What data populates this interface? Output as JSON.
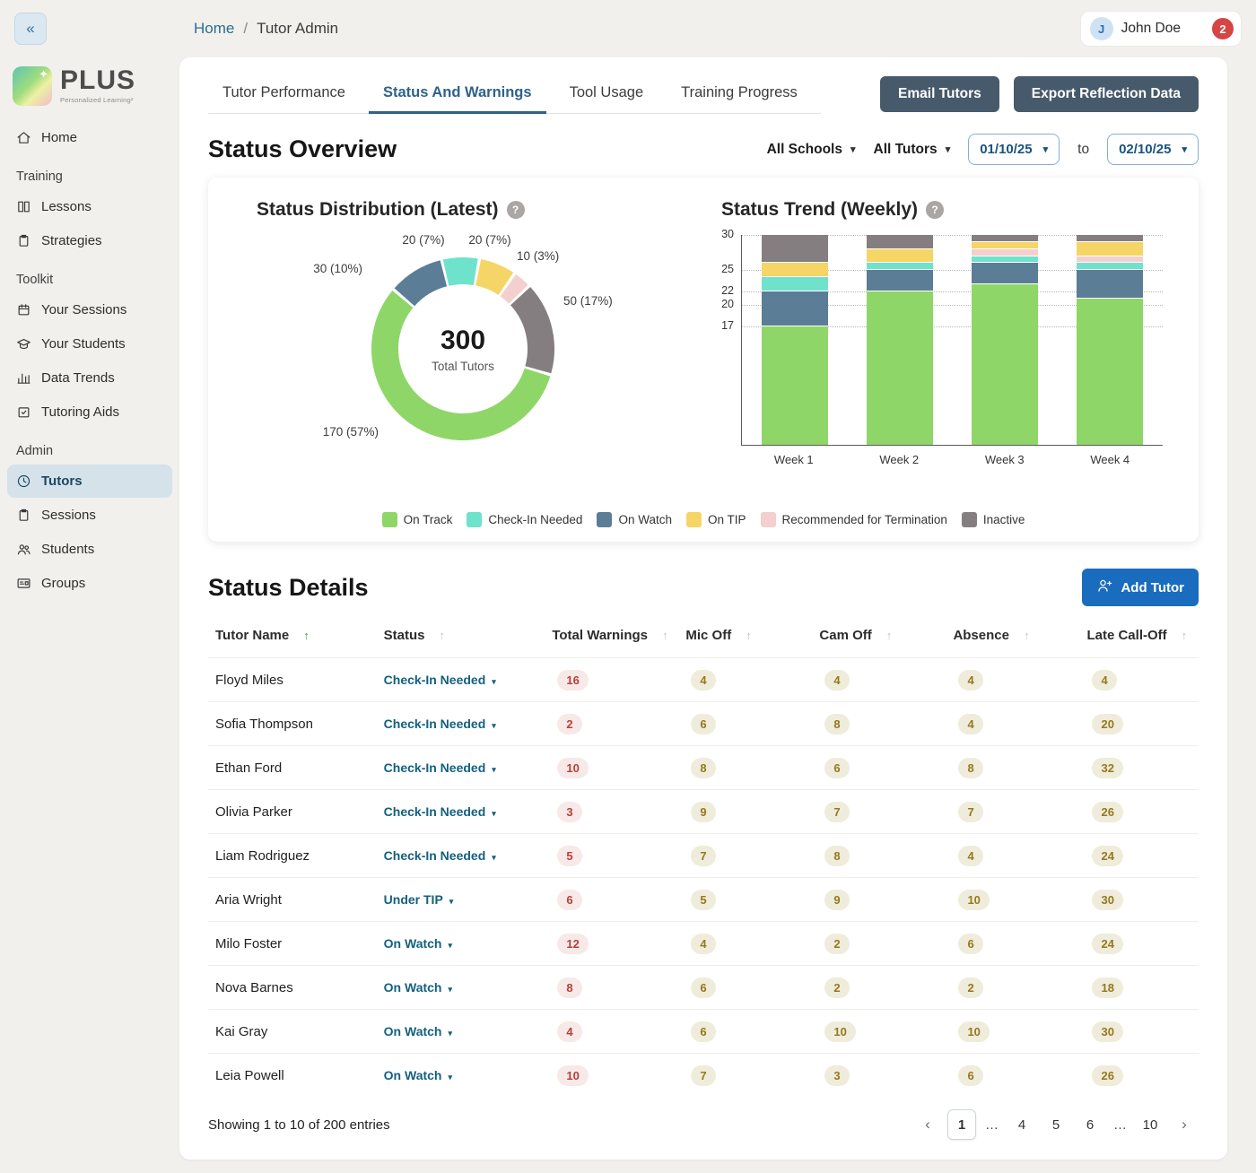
{
  "icons": {
    "collapse": "«",
    "breadcrumb_separator": "/",
    "help": "?",
    "caret_down": "▾",
    "sort_ascending": "↑",
    "pagination_prev": "‹",
    "pagination_next": "›",
    "logo_sparkle": "✦"
  },
  "topbar": {
    "breadcrumb": {
      "home": "Home",
      "current": "Tutor Admin"
    },
    "user": {
      "initial": "J",
      "name": "John Doe",
      "notification_count": "2"
    }
  },
  "sidebar": {
    "logo": {
      "name": "PLUS",
      "tagline": "Personalized Learning²"
    },
    "sections": [
      {
        "label": "",
        "items": [
          {
            "label": "Home",
            "icon": "home-icon",
            "active": false
          }
        ]
      },
      {
        "label": "Training",
        "items": [
          {
            "label": "Lessons",
            "icon": "book-icon",
            "active": false
          },
          {
            "label": "Strategies",
            "icon": "clipboard-icon",
            "active": false
          }
        ]
      },
      {
        "label": "Toolkit",
        "items": [
          {
            "label": "Your Sessions",
            "icon": "calendar-icon",
            "active": false
          },
          {
            "label": "Your Students",
            "icon": "graduation-cap-icon",
            "active": false
          },
          {
            "label": "Data Trends",
            "icon": "bar-chart-icon",
            "active": false
          },
          {
            "label": "Tutoring Aids",
            "icon": "calendar-check-icon",
            "active": false
          }
        ]
      },
      {
        "label": "Admin",
        "items": [
          {
            "label": "Tutors",
            "icon": "clock-icon",
            "active": true
          },
          {
            "label": "Sessions",
            "icon": "clipboard-icon",
            "active": false
          },
          {
            "label": "Students",
            "icon": "people-icon",
            "active": false
          },
          {
            "label": "Groups",
            "icon": "id-card-icon",
            "active": false
          }
        ]
      }
    ]
  },
  "tabs": {
    "items": [
      {
        "label": "Tutor Performance",
        "active": false
      },
      {
        "label": "Status And Warnings",
        "active": true
      },
      {
        "label": "Tool Usage",
        "active": false
      },
      {
        "label": "Training Progress",
        "active": false
      }
    ]
  },
  "header_actions": {
    "email_tutors": "Email Tutors",
    "export_reflection_data": "Export Reflection Data"
  },
  "status_overview": {
    "title": "Status Overview",
    "filters": {
      "school_filter": "All Schools",
      "tutor_filter": "All Tutors",
      "date_from": "01/10/25",
      "date_range_separator": "to",
      "date_to": "02/10/25"
    }
  },
  "chart_data": [
    {
      "type": "pie",
      "variant": "donut",
      "title": "Status Distribution (Latest)",
      "center_value": "300",
      "center_label": "Total Tutors",
      "slices": [
        {
          "label": "On Track",
          "value": 170,
          "pct": 57,
          "color": "#8fd668"
        },
        {
          "label": "Check-In Needed",
          "value": 20,
          "pct": 7,
          "color": "#6fe2cc"
        },
        {
          "label": "On Watch",
          "value": 30,
          "pct": 10,
          "color": "#5b7d96"
        },
        {
          "label": "On TIP",
          "value": 20,
          "pct": 7,
          "color": "#f5d565"
        },
        {
          "label": "Recommended for Termination",
          "value": 10,
          "pct": 3,
          "color": "#f3cfcd"
        },
        {
          "label": "Inactive",
          "value": 50,
          "pct": 17,
          "color": "#857e80"
        }
      ]
    },
    {
      "type": "bar",
      "stacked": true,
      "title": "Status Trend (Weekly)",
      "categories": [
        "Week 1",
        "Week 2",
        "Week 3",
        "Week 4"
      ],
      "yticks": [
        17,
        20,
        22,
        25,
        30
      ],
      "ylim": [
        0,
        30
      ],
      "grid": "dotted",
      "series": [
        {
          "name": "On Track",
          "color": "#8fd668",
          "values": [
            17,
            22,
            23,
            21
          ]
        },
        {
          "name": "On Watch",
          "color": "#5b7d96",
          "values": [
            5,
            3,
            3,
            4
          ]
        },
        {
          "name": "Check-In Needed",
          "color": "#6fe2cc",
          "values": [
            2,
            1,
            1,
            1
          ]
        },
        {
          "name": "Recommended for Termination",
          "color": "#f3cfcd",
          "values": [
            0,
            0,
            1,
            1
          ]
        },
        {
          "name": "On TIP",
          "color": "#f5d565",
          "values": [
            2,
            2,
            1,
            2
          ]
        },
        {
          "name": "Inactive",
          "color": "#857e80",
          "values": [
            4,
            2,
            1,
            1
          ]
        }
      ]
    }
  ],
  "legend": [
    {
      "label": "On Track",
      "color": "#8fd668"
    },
    {
      "label": "Check-In Needed",
      "color": "#6fe2cc"
    },
    {
      "label": "On Watch",
      "color": "#5b7d96"
    },
    {
      "label": "On TIP",
      "color": "#f5d565"
    },
    {
      "label": "Recommended for Termination",
      "color": "#f3cfcd"
    },
    {
      "label": "Inactive",
      "color": "#857e80"
    }
  ],
  "status_details": {
    "title": "Status Details",
    "add_tutor_button": "Add Tutor",
    "columns": [
      {
        "key": "name",
        "label": "Tutor Name",
        "sorted": true
      },
      {
        "key": "status",
        "label": "Status",
        "sorted": false
      },
      {
        "key": "warnings",
        "label": "Total Warnings",
        "sorted": false
      },
      {
        "key": "mic_off",
        "label": "Mic Off",
        "sorted": false
      },
      {
        "key": "cam_off",
        "label": "Cam Off",
        "sorted": false
      },
      {
        "key": "absence",
        "label": "Absence",
        "sorted": false
      },
      {
        "key": "late_call_off",
        "label": "Late Call-Off",
        "sorted": false
      }
    ],
    "rows": [
      {
        "name": "Floyd Miles",
        "status": "Check-In Needed",
        "warnings": 16,
        "mic_off": 4,
        "cam_off": 4,
        "absence": 4,
        "late_call_off": 4
      },
      {
        "name": "Sofia Thompson",
        "status": "Check-In Needed",
        "warnings": 2,
        "mic_off": 6,
        "cam_off": 8,
        "absence": 4,
        "late_call_off": 20
      },
      {
        "name": "Ethan Ford",
        "status": "Check-In Needed",
        "warnings": 10,
        "mic_off": 8,
        "cam_off": 6,
        "absence": 8,
        "late_call_off": 32
      },
      {
        "name": "Olivia Parker",
        "status": "Check-In Needed",
        "warnings": 3,
        "mic_off": 9,
        "cam_off": 7,
        "absence": 7,
        "late_call_off": 26
      },
      {
        "name": "Liam Rodriguez",
        "status": "Check-In Needed",
        "warnings": 5,
        "mic_off": 7,
        "cam_off": 8,
        "absence": 4,
        "late_call_off": 24
      },
      {
        "name": "Aria Wright",
        "status": "Under TIP",
        "warnings": 6,
        "mic_off": 5,
        "cam_off": 9,
        "absence": 10,
        "late_call_off": 30
      },
      {
        "name": "Milo Foster",
        "status": "On Watch",
        "warnings": 12,
        "mic_off": 4,
        "cam_off": 2,
        "absence": 6,
        "late_call_off": 24
      },
      {
        "name": "Nova Barnes",
        "status": "On Watch",
        "warnings": 8,
        "mic_off": 6,
        "cam_off": 2,
        "absence": 2,
        "late_call_off": 18
      },
      {
        "name": "Kai Gray",
        "status": "On Watch",
        "warnings": 4,
        "mic_off": 6,
        "cam_off": 10,
        "absence": 10,
        "late_call_off": 30
      },
      {
        "name": "Leia Powell",
        "status": "On Watch",
        "warnings": 10,
        "mic_off": 7,
        "cam_off": 3,
        "absence": 6,
        "late_call_off": 26
      }
    ],
    "footer_text": "Showing 1 to 10 of 200 entries",
    "pagination": {
      "pages": [
        "1",
        "…",
        "4",
        "5",
        "6",
        "…",
        "10"
      ],
      "active_page": "1"
    }
  }
}
